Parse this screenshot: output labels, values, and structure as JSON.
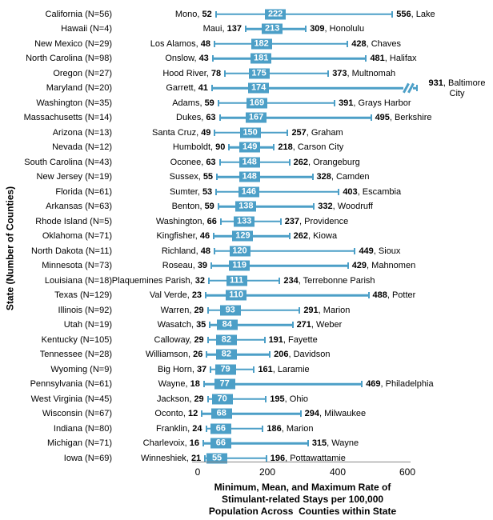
{
  "chart_data": {
    "type": "bar",
    "subtype": "min-mean-max range (dot-and-whisker) plot, one row per state",
    "title": "",
    "xlabel": "Minimum, Mean, and Maximum Rate of Stimulant-related Stays per 100,000 Population Across Counties within State",
    "xlabel_lines": [
      "Minimum, Mean, and Maximum Rate of",
      "Stimulant-related Stays per 100,000",
      "Population Across  Counties within State"
    ],
    "ylabel": "State (Number of Counties)",
    "xlim": [
      0,
      600
    ],
    "xticks": [
      "0",
      "200",
      "400",
      "600"
    ],
    "grid": false,
    "legend": "none",
    "accent_color": "#4C9FC7",
    "axis_line_color": "#888888",
    "axis_break_note": "Maryland maximum (931, Baltimore City) exceeds the 600 axis limit and is drawn with a break symbol",
    "rows": [
      {
        "state": "California",
        "n": 56,
        "min_county": "Mono",
        "min": 52,
        "mean": 222,
        "max": 556,
        "max_county": "Lake"
      },
      {
        "state": "Hawaii",
        "n": 4,
        "min_county": "Maui",
        "min": 137,
        "mean": 213,
        "max": 309,
        "max_county": "Honolulu"
      },
      {
        "state": "New Mexico",
        "n": 29,
        "min_county": "Los Alamos",
        "min": 48,
        "mean": 182,
        "max": 428,
        "max_county": "Chaves"
      },
      {
        "state": "North Carolina",
        "n": 98,
        "min_county": "Onslow",
        "min": 43,
        "mean": 181,
        "max": 481,
        "max_county": "Halifax"
      },
      {
        "state": "Oregon",
        "n": 27,
        "min_county": "Hood River",
        "min": 78,
        "mean": 175,
        "max": 373,
        "max_county": "Multnomah"
      },
      {
        "state": "Maryland",
        "n": 20,
        "min_county": "Garrett",
        "min": 41,
        "mean": 174,
        "max": 931,
        "max_county": "Baltimore City",
        "axis_break": true
      },
      {
        "state": "Washington",
        "n": 35,
        "min_county": "Adams",
        "min": 59,
        "mean": 169,
        "max": 391,
        "max_county": "Grays Harbor"
      },
      {
        "state": "Massachusetts",
        "n": 14,
        "min_county": "Dukes",
        "min": 63,
        "mean": 167,
        "max": 495,
        "max_county": "Berkshire"
      },
      {
        "state": "Arizona",
        "n": 13,
        "min_county": "Santa Cruz",
        "min": 49,
        "mean": 150,
        "max": 257,
        "max_county": "Graham"
      },
      {
        "state": "Nevada",
        "n": 12,
        "min_county": "Humboldt",
        "min": 90,
        "mean": 149,
        "max": 218,
        "max_county": "Carson City"
      },
      {
        "state": "South Carolina",
        "n": 43,
        "min_county": "Oconee",
        "min": 63,
        "mean": 148,
        "max": 262,
        "max_county": "Orangeburg"
      },
      {
        "state": "New Jersey",
        "n": 19,
        "min_county": "Sussex",
        "min": 55,
        "mean": 148,
        "max": 328,
        "max_county": "Camden"
      },
      {
        "state": "Florida",
        "n": 61,
        "min_county": "Sumter",
        "min": 53,
        "mean": 146,
        "max": 403,
        "max_county": "Escambia"
      },
      {
        "state": "Arkansas",
        "n": 63,
        "min_county": "Benton",
        "min": 59,
        "mean": 138,
        "max": 332,
        "max_county": "Woodruff"
      },
      {
        "state": "Rhode Island",
        "n": 5,
        "min_county": "Washington",
        "min": 66,
        "mean": 133,
        "max": 237,
        "max_county": "Providence"
      },
      {
        "state": "Oklahoma",
        "n": 71,
        "min_county": "Kingfisher",
        "min": 46,
        "mean": 129,
        "max": 262,
        "max_county": "Kiowa"
      },
      {
        "state": "North Dakota",
        "n": 11,
        "min_county": "Richland",
        "min": 48,
        "mean": 120,
        "max": 449,
        "max_county": "Sioux"
      },
      {
        "state": "Minnesota",
        "n": 73,
        "min_county": "Roseau",
        "min": 39,
        "mean": 119,
        "max": 429,
        "max_county": "Mahnomen"
      },
      {
        "state": "Louisiana",
        "n": 18,
        "min_county": "Plaquemines Parish",
        "min": 32,
        "mean": 111,
        "max": 234,
        "max_county": "Terrebonne Parish"
      },
      {
        "state": "Texas",
        "n": 129,
        "min_county": "Val Verde",
        "min": 23,
        "mean": 110,
        "max": 488,
        "max_county": "Potter"
      },
      {
        "state": "Illinois",
        "n": 92,
        "min_county": "Warren",
        "min": 29,
        "mean": 93,
        "max": 291,
        "max_county": "Marion"
      },
      {
        "state": "Utah",
        "n": 19,
        "min_county": "Wasatch",
        "min": 35,
        "mean": 84,
        "max": 271,
        "max_county": "Weber"
      },
      {
        "state": "Kentucky",
        "n": 105,
        "min_county": "Calloway",
        "min": 29,
        "mean": 82,
        "max": 191,
        "max_county": "Fayette"
      },
      {
        "state": "Tennessee",
        "n": 28,
        "min_county": "Williamson",
        "min": 26,
        "mean": 82,
        "max": 206,
        "max_county": "Davidson"
      },
      {
        "state": "Wyoming",
        "n": 9,
        "min_county": "Big Horn",
        "min": 37,
        "mean": 79,
        "max": 161,
        "max_county": "Laramie"
      },
      {
        "state": "Pennsylvania",
        "n": 61,
        "min_county": "Wayne",
        "min": 18,
        "mean": 77,
        "max": 469,
        "max_county": "Philadelphia"
      },
      {
        "state": "West Virginia",
        "n": 45,
        "min_county": "Jackson",
        "min": 29,
        "mean": 70,
        "max": 195,
        "max_county": "Ohio"
      },
      {
        "state": "Wisconsin",
        "n": 67,
        "min_county": "Oconto",
        "min": 12,
        "mean": 68,
        "max": 294,
        "max_county": "Milwaukee"
      },
      {
        "state": "Indiana",
        "n": 80,
        "min_county": "Franklin",
        "min": 24,
        "mean": 66,
        "max": 186,
        "max_county": "Marion"
      },
      {
        "state": "Michigan",
        "n": 71,
        "min_county": "Charlevoix",
        "min": 16,
        "mean": 66,
        "max": 315,
        "max_county": "Wayne"
      },
      {
        "state": "Iowa",
        "n": 69,
        "min_county": "Winneshiek",
        "min": 21,
        "mean": 55,
        "max": 196,
        "max_county": "Pottawattamie"
      }
    ]
  }
}
